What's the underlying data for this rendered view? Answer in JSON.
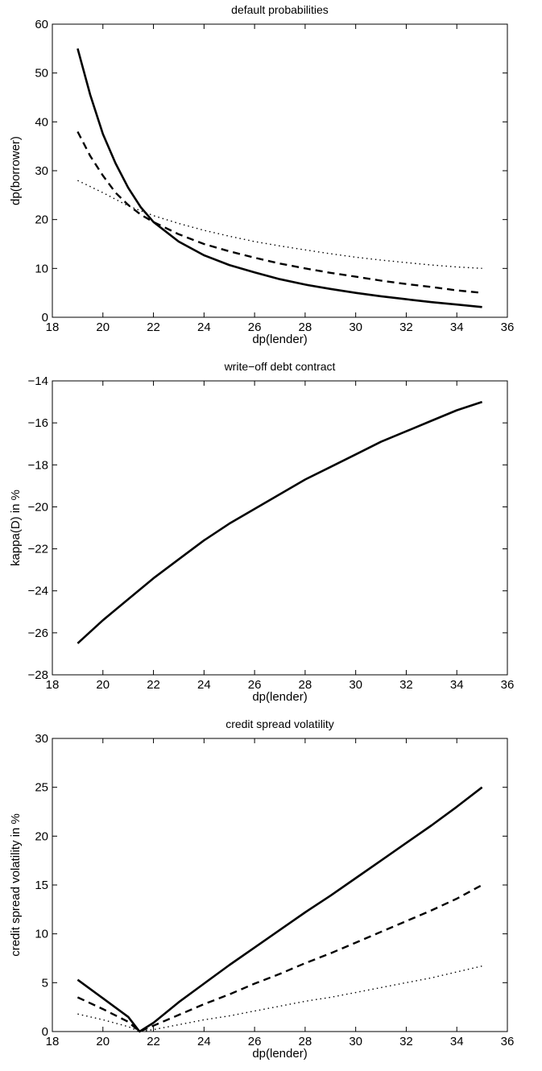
{
  "chart_data": [
    {
      "type": "line",
      "title": "default probabilities",
      "xlabel": "dp(lender)",
      "ylabel": "dp(borrower)",
      "xlim": [
        18,
        36
      ],
      "ylim": [
        0,
        60
      ],
      "xticks": [
        18,
        20,
        22,
        24,
        26,
        28,
        30,
        32,
        34,
        36
      ],
      "yticks": [
        0,
        10,
        20,
        30,
        40,
        50,
        60
      ],
      "grid": false,
      "series": [
        {
          "style": "solid",
          "x": [
            19,
            19.5,
            20,
            20.5,
            21,
            21.5,
            22,
            23,
            24,
            25,
            26,
            27,
            28,
            29,
            30,
            31,
            32,
            33,
            34,
            35
          ],
          "y": [
            55,
            45.5,
            37.5,
            31.5,
            26.5,
            22.5,
            19.5,
            15.5,
            12.7,
            10.7,
            9.2,
            7.8,
            6.7,
            5.8,
            5.0,
            4.3,
            3.7,
            3.1,
            2.6,
            2.1
          ]
        },
        {
          "style": "dashed",
          "x": [
            19,
            19.5,
            20,
            20.5,
            21,
            21.5,
            22,
            23,
            24,
            25,
            26,
            27,
            28,
            29,
            30,
            31,
            32,
            33,
            34,
            35
          ],
          "y": [
            38,
            33,
            29,
            25.5,
            23,
            21,
            19.5,
            17,
            15,
            13.5,
            12.2,
            11,
            10,
            9.1,
            8.3,
            7.5,
            6.8,
            6.2,
            5.5,
            5.0
          ]
        },
        {
          "style": "dotted",
          "x": [
            19,
            20,
            21,
            22,
            23,
            24,
            25,
            26,
            27,
            28,
            29,
            30,
            31,
            32,
            33,
            34,
            35
          ],
          "y": [
            28,
            25.5,
            22.8,
            20.8,
            19.2,
            17.8,
            16.6,
            15.5,
            14.6,
            13.8,
            13.0,
            12.3,
            11.7,
            11.2,
            10.7,
            10.3,
            10.0
          ]
        }
      ]
    },
    {
      "type": "line",
      "title": "write−off debt contract",
      "xlabel": "dp(lender)",
      "ylabel": "kappa(D) in %",
      "xlim": [
        18,
        36
      ],
      "ylim": [
        -28,
        -14
      ],
      "xticks": [
        18,
        20,
        22,
        24,
        26,
        28,
        30,
        32,
        34,
        36
      ],
      "yticks": [
        -28,
        -26,
        -24,
        -22,
        -20,
        -18,
        -16,
        -14
      ],
      "yticklabels": [
        "−28",
        "−26",
        "−24",
        "−22",
        "−20",
        "−18",
        "−16",
        "−14"
      ],
      "grid": false,
      "series": [
        {
          "style": "solid",
          "x": [
            19,
            20,
            21,
            22,
            23,
            24,
            25,
            26,
            27,
            28,
            29,
            30,
            31,
            32,
            33,
            34,
            35
          ],
          "y": [
            -26.5,
            -25.4,
            -24.4,
            -23.4,
            -22.5,
            -21.6,
            -20.8,
            -20.1,
            -19.4,
            -18.7,
            -18.1,
            -17.5,
            -16.9,
            -16.4,
            -15.9,
            -15.4,
            -15.0
          ]
        }
      ]
    },
    {
      "type": "line",
      "title": "credit spread volatility",
      "xlabel": "dp(lender)",
      "ylabel": "credit spread volatility in %",
      "xlim": [
        18,
        36
      ],
      "ylim": [
        0,
        30
      ],
      "xticks": [
        18,
        20,
        22,
        24,
        26,
        28,
        30,
        32,
        34,
        36
      ],
      "yticks": [
        0,
        5,
        10,
        15,
        20,
        25,
        30
      ],
      "grid": false,
      "series": [
        {
          "style": "solid",
          "x": [
            19,
            20,
            21,
            21.45,
            22,
            23,
            24,
            25,
            26,
            27,
            28,
            29,
            30,
            31,
            32,
            33,
            34,
            35
          ],
          "y": [
            5.3,
            3.4,
            1.5,
            0,
            0.9,
            3.0,
            4.9,
            6.8,
            8.6,
            10.4,
            12.2,
            13.9,
            15.7,
            17.5,
            19.3,
            21.1,
            23.0,
            25.0
          ]
        },
        {
          "style": "dashed",
          "x": [
            19,
            20,
            21,
            21.45,
            22,
            23,
            24,
            25,
            26,
            27,
            28,
            29,
            30,
            31,
            32,
            33,
            34,
            35
          ],
          "y": [
            3.5,
            2.3,
            1.0,
            0,
            0.6,
            1.7,
            2.8,
            3.8,
            4.9,
            5.9,
            7.0,
            8.0,
            9.1,
            10.2,
            11.3,
            12.4,
            13.6,
            15.0
          ]
        },
        {
          "style": "dotted",
          "x": [
            19,
            20,
            21,
            21.45,
            22,
            23,
            24,
            25,
            26,
            27,
            28,
            29,
            30,
            31,
            32,
            33,
            34,
            35
          ],
          "y": [
            1.8,
            1.2,
            0.5,
            0,
            0.2,
            0.7,
            1.2,
            1.6,
            2.1,
            2.6,
            3.1,
            3.5,
            4.0,
            4.5,
            5.0,
            5.5,
            6.1,
            6.7
          ]
        }
      ]
    }
  ]
}
